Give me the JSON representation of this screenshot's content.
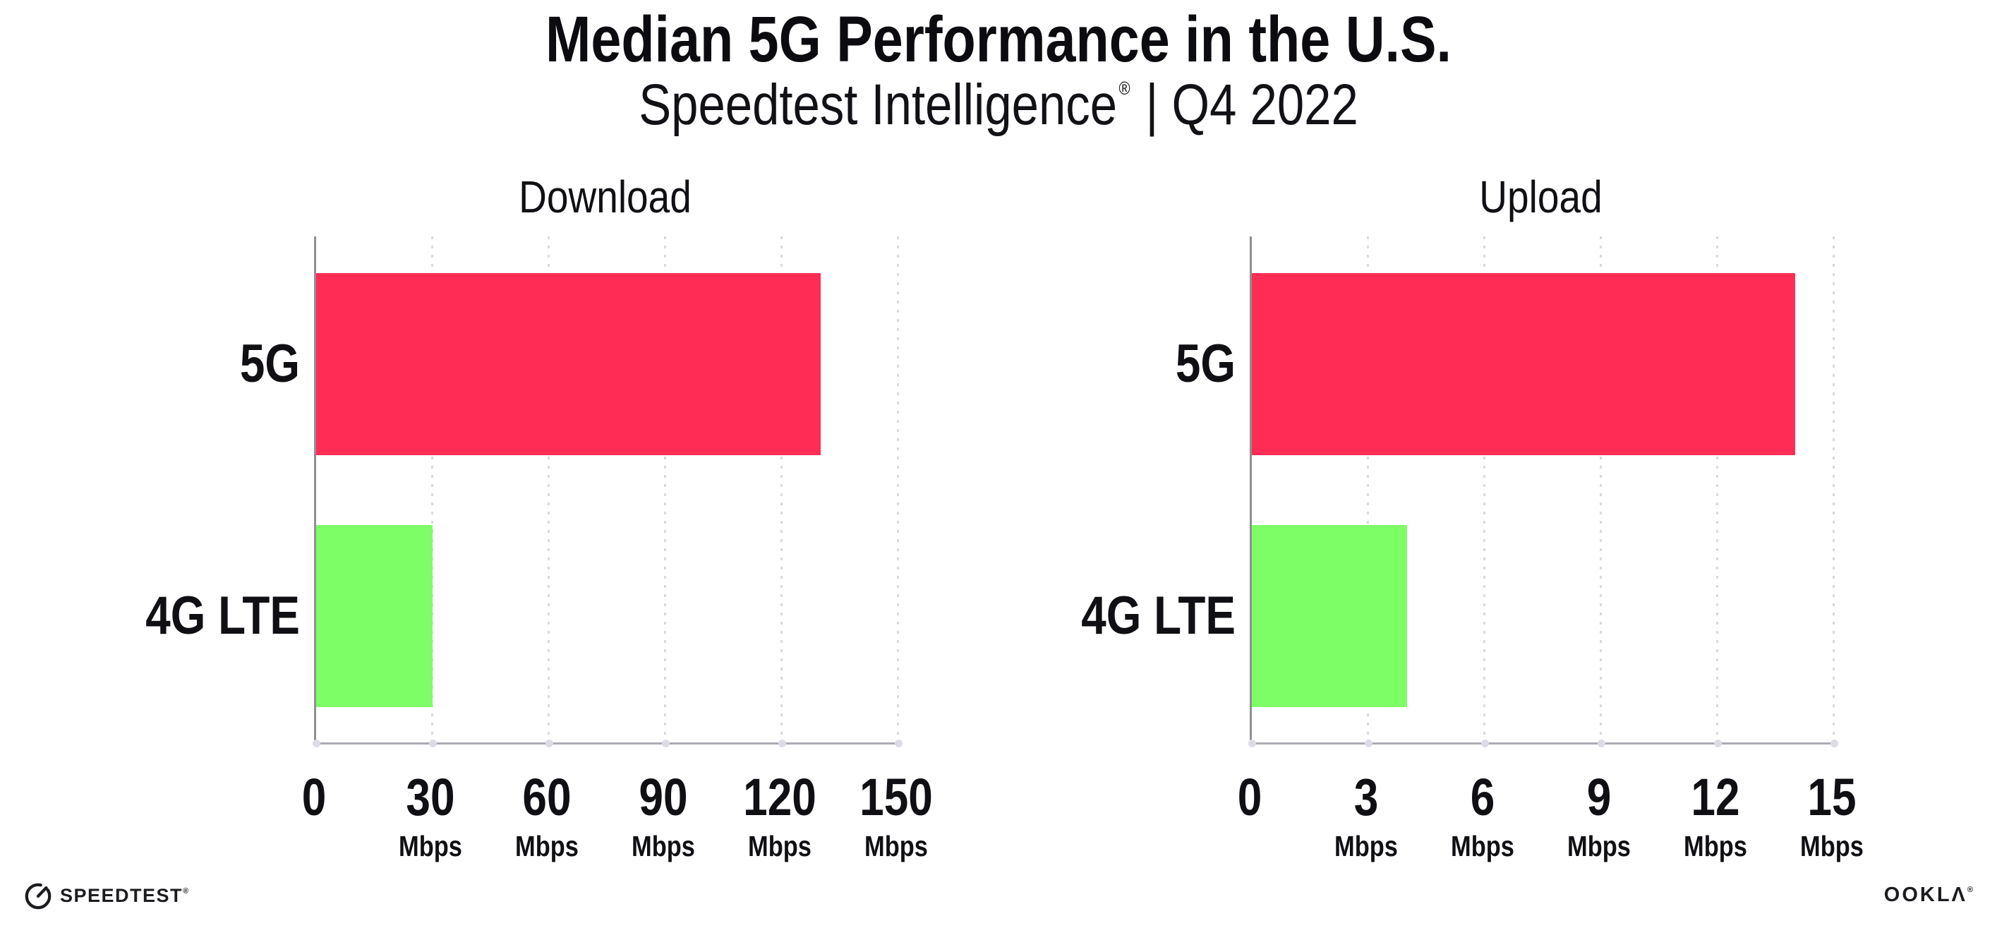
{
  "header": {
    "title": "Median 5G Performance in the U.S.",
    "subtitle_brand": "Speedtest Intelligence",
    "subtitle_reg": "®",
    "subtitle_period": "| Q4 2022"
  },
  "chart_data": [
    {
      "type": "bar",
      "orientation": "horizontal",
      "title": "Download",
      "categories": [
        "5G",
        "4G LTE"
      ],
      "values": [
        130,
        30
      ],
      "unit": "Mbps",
      "xticks": [
        0,
        30,
        60,
        90,
        120,
        150
      ],
      "xlim": [
        0,
        150
      ],
      "bar_colors": [
        "#ff2d55",
        "#7dfd66"
      ],
      "grid": "dotted-vertical",
      "legend": "none"
    },
    {
      "type": "bar",
      "orientation": "horizontal",
      "title": "Upload",
      "categories": [
        "5G",
        "4G LTE"
      ],
      "values": [
        14,
        4
      ],
      "unit": "Mbps",
      "xticks": [
        0,
        3,
        6,
        9,
        12,
        15
      ],
      "xlim": [
        0,
        15
      ],
      "bar_colors": [
        "#ff2d55",
        "#7dfd66"
      ],
      "grid": "dotted-vertical",
      "legend": "none"
    }
  ],
  "footer": {
    "speedtest_logo_text": "SPEEDTEST",
    "speedtest_reg": "®",
    "ookla_logo_text": "OOKLΛ",
    "ookla_reg": "®"
  },
  "colors": {
    "bar_5g": "#ff2d55",
    "bar_4g_lte": "#7dfd66",
    "axis": "#9a9aa2",
    "grid_dot": "#d9d9e3",
    "text": "#101014"
  }
}
